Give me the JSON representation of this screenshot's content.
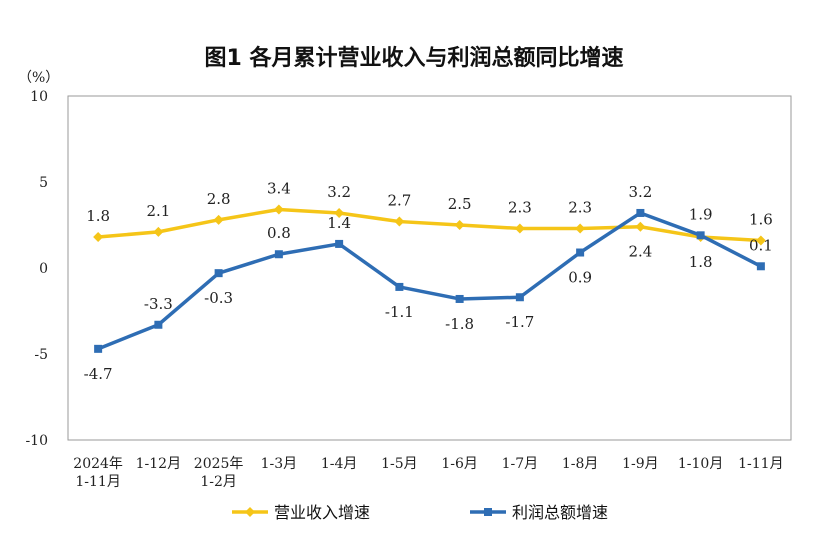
{
  "chart_data": {
    "type": "line",
    "title": "图1  各月累计营业收入与利润总额同比增速",
    "ylabel": "（%）",
    "ylim": [
      -10,
      10
    ],
    "yticks": [
      10,
      5,
      0,
      -5,
      -10
    ],
    "categories": [
      [
        "2024年",
        "1-11月"
      ],
      [
        "1-12月"
      ],
      [
        "2025年",
        "1-2月"
      ],
      [
        "1-3月"
      ],
      [
        "1-4月"
      ],
      [
        "1-5月"
      ],
      [
        "1-6月"
      ],
      [
        "1-7月"
      ],
      [
        "1-8月"
      ],
      [
        "1-9月"
      ],
      [
        "1-10月"
      ],
      [
        "1-11月"
      ]
    ],
    "series": [
      {
        "name": "营业收入增速",
        "color": "#F5C518",
        "marker": "diamond",
        "values": [
          1.8,
          2.1,
          2.8,
          3.4,
          3.2,
          2.7,
          2.5,
          2.3,
          2.3,
          2.4,
          1.8,
          1.6
        ],
        "labels": [
          "1.8",
          "2.1",
          "2.8",
          "3.4",
          "3.2",
          "2.7",
          "2.5",
          "2.3",
          "2.3",
          "2.4",
          "1.8",
          "1.6"
        ],
        "label_pos": [
          "above",
          "above",
          "above",
          "above",
          "above",
          "above",
          "above",
          "above",
          "above",
          "below",
          "below",
          "above"
        ]
      },
      {
        "name": "利润总额增速",
        "color": "#2E6DB4",
        "marker": "square",
        "values": [
          -4.7,
          -3.3,
          -0.3,
          0.8,
          1.4,
          -1.1,
          -1.8,
          -1.7,
          0.9,
          3.2,
          1.9,
          0.1
        ],
        "labels": [
          "-4.7",
          "-3.3",
          "-0.3",
          "0.8",
          "1.4",
          "-1.1",
          "-1.8",
          "-1.7",
          "0.9",
          "3.2",
          "1.9",
          "0.1"
        ],
        "label_pos": [
          "below",
          "above",
          "below",
          "above",
          "above",
          "below",
          "below",
          "below",
          "below",
          "above",
          "above",
          "above"
        ]
      }
    ],
    "legend": "bottom"
  }
}
